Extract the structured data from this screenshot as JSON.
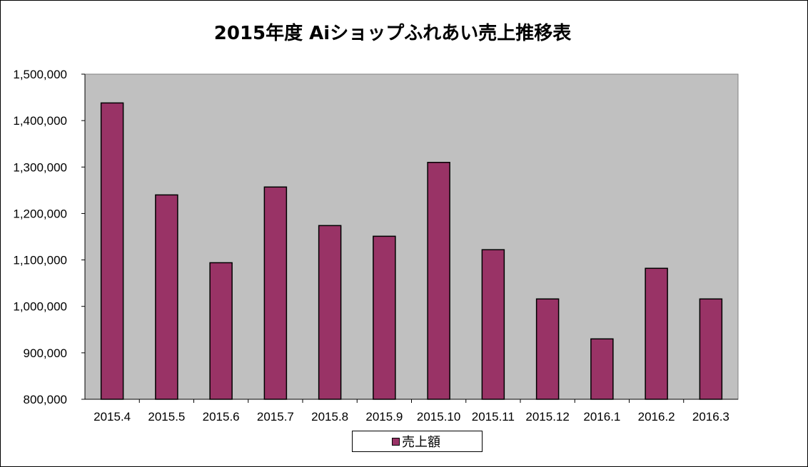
{
  "chart_data": {
    "type": "bar",
    "title": "2015年度  Aiショップふれあい売上推移表",
    "categories": [
      "2015.4",
      "2015.5",
      "2015.6",
      "2015.7",
      "2015.8",
      "2015.9",
      "2015.10",
      "2015.11",
      "2015.12",
      "2016.1",
      "2016.2",
      "2016.3"
    ],
    "series": [
      {
        "name": "売上額",
        "values": [
          1438000,
          1240000,
          1094000,
          1257000,
          1174000,
          1151000,
          1310000,
          1122000,
          1016000,
          930000,
          1082000,
          1016000
        ]
      }
    ],
    "ylim": [
      800000,
      1500000
    ],
    "yticks": [
      800000,
      900000,
      1000000,
      1100000,
      1200000,
      1300000,
      1400000,
      1500000
    ],
    "ytick_labels": [
      "800,000",
      "900,000",
      "1,000,000",
      "1,100,000",
      "1,200,000",
      "1,300,000",
      "1,400,000",
      "1,500,000"
    ],
    "grid": false,
    "legend": "bottom",
    "colors": {
      "bar": "#993366",
      "plot_background": "#c0c0c0",
      "page_background": "#ffffff"
    }
  }
}
